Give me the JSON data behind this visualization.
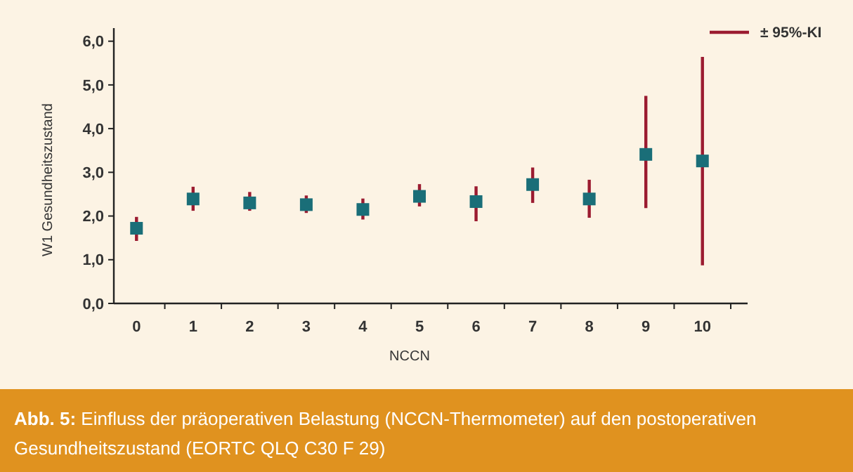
{
  "chart_data": {
    "type": "scatter",
    "xlabel": "NCCN",
    "ylabel": "W1 Gesundheitszustand",
    "categories": [
      "0",
      "1",
      "2",
      "3",
      "4",
      "5",
      "6",
      "7",
      "8",
      "9",
      "10"
    ],
    "series": [
      {
        "name": "± 95%-KI",
        "color": "#1a6e78",
        "values": [
          1.72,
          2.39,
          2.3,
          2.26,
          2.15,
          2.45,
          2.33,
          2.72,
          2.39,
          3.41,
          3.26
        ],
        "errors": [
          [
            1.43,
            1.98
          ],
          [
            2.12,
            2.67
          ],
          [
            2.12,
            2.55
          ],
          [
            2.07,
            2.47
          ],
          [
            1.92,
            2.4
          ],
          [
            2.22,
            2.73
          ],
          [
            1.88,
            2.68
          ],
          [
            2.3,
            3.11
          ],
          [
            1.96,
            2.83
          ],
          [
            2.18,
            4.75
          ],
          [
            0.87,
            5.64
          ]
        ]
      }
    ],
    "ylim": [
      0,
      6.3
    ],
    "yticks": [
      {
        "value": 0,
        "label": "0,0"
      },
      {
        "value": 1,
        "label": "1,0"
      },
      {
        "value": 2,
        "label": "2,0"
      },
      {
        "value": 3,
        "label": "3,0"
      },
      {
        "value": 4,
        "label": "4,0"
      },
      {
        "value": 5,
        "label": "5,0"
      },
      {
        "value": 6,
        "label": "6,0"
      }
    ],
    "marker": "square",
    "legend": "top right",
    "grid": false,
    "annotations": [
      "Abb. 5: Einfluss der präoperativen Belastung (NCCN-Thermometer) auf den postoperativen Gesundheitszustand (EORTC QLQ C30 F 29)"
    ]
  }
}
